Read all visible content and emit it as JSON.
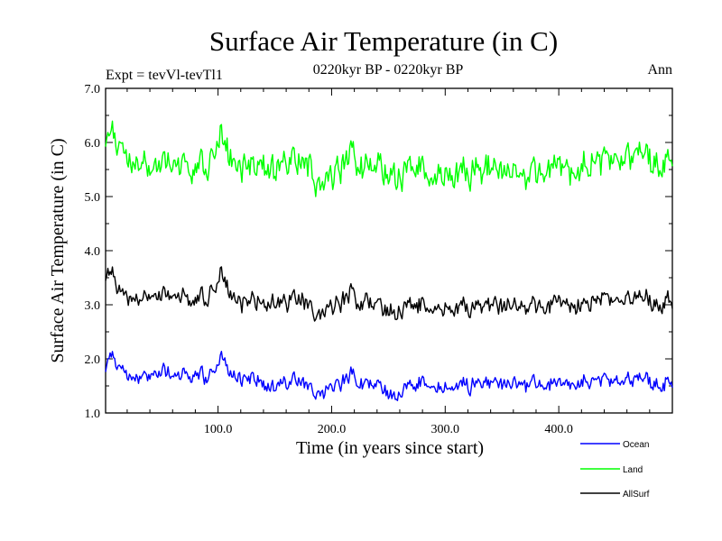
{
  "chart_data": {
    "type": "line",
    "title": "Surface Air Temperature (in C)",
    "subtitle": "0220kyr BP - 0220kyr BP",
    "left_label": "Expt = tevVl-tevTl1",
    "right_label": "Ann",
    "xlabel": "Time (in years since start)",
    "ylabel": "Surface Air Temperature (in C)",
    "xlim": [
      1,
      500
    ],
    "ylim": [
      1.0,
      7.0
    ],
    "x_ticks": [
      100,
      200,
      300,
      400
    ],
    "x_tick_labels": [
      "100.0",
      "200.0",
      "300.0",
      "400.0"
    ],
    "y_ticks": [
      1,
      2,
      3,
      4,
      5,
      6,
      7
    ],
    "y_tick_labels": [
      "1.0",
      "2.0",
      "3.0",
      "4.0",
      "5.0",
      "6.0",
      "7.0"
    ],
    "legend_position": "bottom-right",
    "series": [
      {
        "name": "Ocean",
        "color": "#0000ff",
        "anchor_x": [
          1,
          5,
          10,
          15,
          20,
          30,
          40,
          50,
          60,
          70,
          80,
          90,
          100,
          103,
          106,
          110,
          120,
          130,
          140,
          150,
          160,
          170,
          180,
          190,
          200,
          210,
          218,
          225,
          235,
          245,
          255,
          265,
          275,
          285,
          295,
          305,
          315,
          325,
          340,
          355,
          370,
          385,
          400,
          415,
          430,
          445,
          460,
          475,
          490,
          500
        ],
        "anchor_y": [
          1.85,
          2.15,
          1.95,
          1.75,
          1.65,
          1.6,
          1.75,
          1.8,
          1.7,
          1.7,
          1.7,
          1.65,
          1.85,
          2.2,
          1.95,
          1.75,
          1.6,
          1.7,
          1.55,
          1.5,
          1.55,
          1.65,
          1.45,
          1.35,
          1.5,
          1.55,
          1.7,
          1.55,
          1.5,
          1.45,
          1.3,
          1.45,
          1.55,
          1.6,
          1.45,
          1.5,
          1.55,
          1.5,
          1.55,
          1.55,
          1.5,
          1.55,
          1.5,
          1.55,
          1.6,
          1.6,
          1.65,
          1.6,
          1.5,
          1.6
        ],
        "noise_amplitude": 0.14
      },
      {
        "name": "Land",
        "color": "#00ff00",
        "anchor_x": [
          1,
          5,
          10,
          15,
          20,
          30,
          40,
          50,
          60,
          70,
          80,
          90,
          100,
          103,
          106,
          110,
          120,
          130,
          140,
          150,
          160,
          170,
          180,
          190,
          200,
          210,
          218,
          225,
          235,
          245,
          255,
          265,
          275,
          285,
          295,
          305,
          315,
          325,
          340,
          355,
          370,
          385,
          400,
          415,
          430,
          445,
          460,
          475,
          490,
          500
        ],
        "anchor_y": [
          6.1,
          6.35,
          6.05,
          5.75,
          5.6,
          5.5,
          5.6,
          5.7,
          5.6,
          5.6,
          5.5,
          5.55,
          5.9,
          6.35,
          6.0,
          5.7,
          5.5,
          5.65,
          5.6,
          5.55,
          5.6,
          5.75,
          5.5,
          5.25,
          5.45,
          5.55,
          5.85,
          5.55,
          5.5,
          5.45,
          5.4,
          5.45,
          5.6,
          5.5,
          5.45,
          5.45,
          5.5,
          5.45,
          5.5,
          5.45,
          5.3,
          5.5,
          5.5,
          5.5,
          5.6,
          5.7,
          5.8,
          5.75,
          5.6,
          5.75
        ],
        "noise_amplitude": 0.28
      },
      {
        "name": "AllSurf",
        "color": "#000000",
        "anchor_x": [
          1,
          5,
          10,
          15,
          20,
          30,
          40,
          50,
          60,
          70,
          80,
          90,
          100,
          103,
          106,
          110,
          120,
          130,
          140,
          150,
          160,
          170,
          180,
          190,
          200,
          210,
          218,
          225,
          235,
          245,
          255,
          265,
          275,
          285,
          295,
          305,
          315,
          325,
          340,
          355,
          370,
          385,
          400,
          415,
          430,
          445,
          460,
          475,
          490,
          500
        ],
        "anchor_y": [
          3.55,
          3.7,
          3.4,
          3.15,
          3.1,
          3.05,
          3.2,
          3.25,
          3.15,
          3.15,
          3.1,
          3.1,
          3.4,
          3.75,
          3.45,
          3.2,
          3.0,
          3.15,
          3.05,
          3.05,
          3.05,
          3.15,
          2.95,
          2.85,
          3.0,
          3.05,
          3.25,
          3.05,
          3.0,
          2.95,
          2.85,
          2.95,
          3.05,
          3.0,
          2.95,
          2.95,
          3.0,
          2.95,
          3.0,
          3.0,
          2.9,
          3.0,
          3.0,
          3.0,
          3.05,
          3.1,
          3.15,
          3.1,
          3.0,
          3.1
        ],
        "noise_amplitude": 0.17
      }
    ]
  }
}
